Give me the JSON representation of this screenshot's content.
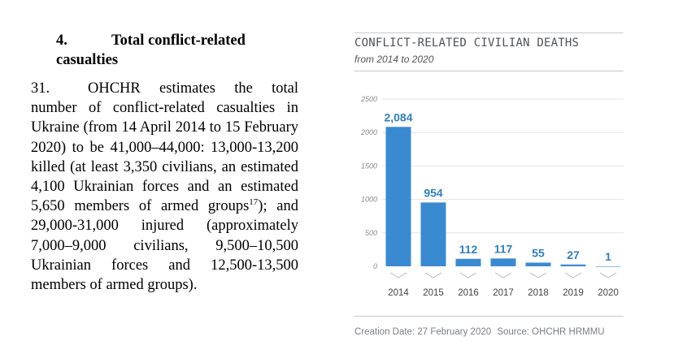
{
  "section": {
    "number": "4.",
    "title_line1": "Total conflict-related",
    "title_line2": "casualties"
  },
  "paragraph": {
    "number": "31.",
    "text_before_sup": "OHCHR estimates the total number of conflict-related casualties in Ukraine (from 14 April 2014 to 15 February 2020) to be 41,000–44,000: 13,000-13,200 killed (at least 3,350 civilians, an estimated 4,100 Ukrainian forces and an estimated 5,650 members of armed groups",
    "footnote_ref": "17",
    "text_after_sup": "); and 29,000-31,000 injured (approximately 7,000–9,000 civilians, 9,500–10,500 Ukrainian forces and 12,500-13,500 members of armed groups)."
  },
  "infographic": {
    "footer_date": "Creation Date: 27 February 2020",
    "footer_source": "Source: OHCHR HRMMU"
  },
  "colors": {
    "bar": "#3a8ad1",
    "data_label": "#2f7fc1",
    "gridline": "#e3e3e3"
  },
  "chart_data": {
    "type": "bar",
    "title": "CONFLICT-RELATED CIVILIAN DEATHS",
    "subtitle": "from 2014 to 2020",
    "categories": [
      "2014",
      "2015",
      "2016",
      "2017",
      "2018",
      "2019",
      "2020"
    ],
    "values": [
      2084,
      954,
      112,
      117,
      55,
      27,
      1
    ],
    "data_labels": [
      "2,084",
      "954",
      "112",
      "117",
      "55",
      "27",
      "1"
    ],
    "ylim": [
      0,
      2500
    ],
    "yticks": [
      0,
      500,
      1000,
      1500,
      2000,
      2500
    ],
    "grid": true,
    "xlabel": "",
    "ylabel": ""
  }
}
